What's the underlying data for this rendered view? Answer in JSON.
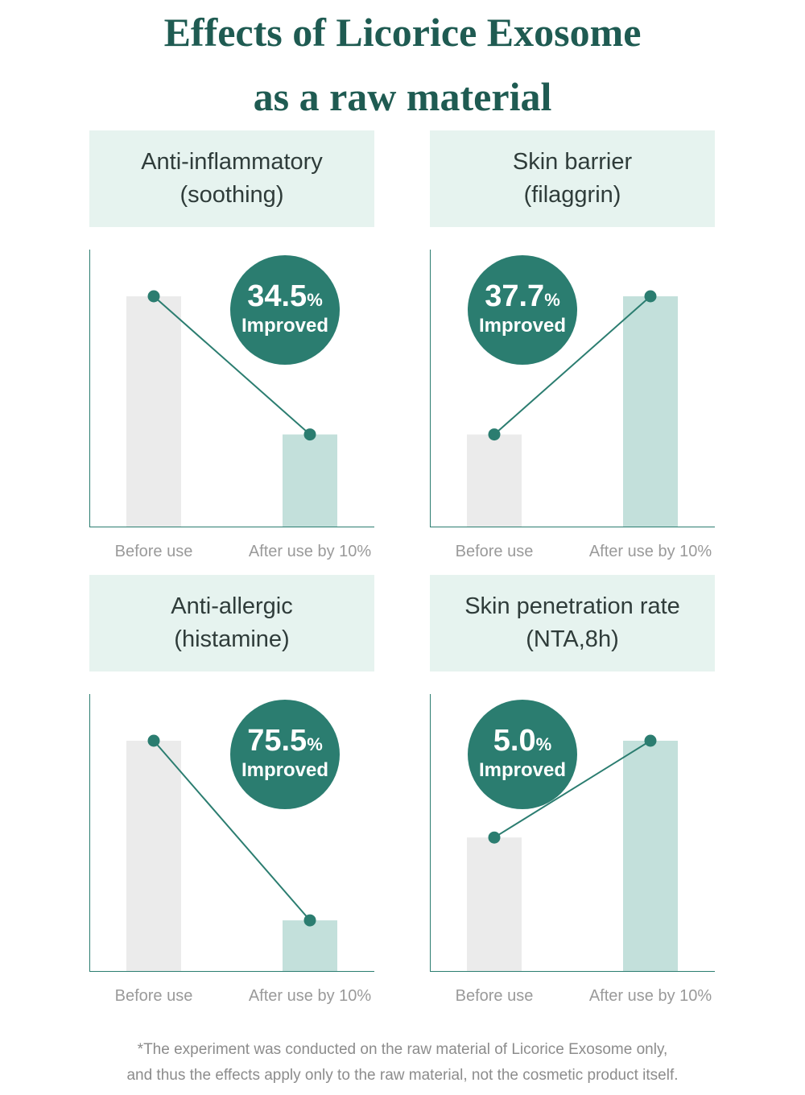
{
  "title": {
    "line1": "Effects of Licorice Exosome",
    "line2": "as a raw material"
  },
  "colors": {
    "title": "#1f5b52",
    "header_bg": "#e6f3ef",
    "bar_before": "#ebebeb",
    "bar_after": "#c3e0db",
    "line": "#2b7d70",
    "badge": "#2b7d70",
    "axis": "#2b7d70"
  },
  "chart_data": [
    {
      "type": "bar",
      "title_line1": "Anti-inflammatory",
      "title_line2": "(soothing)",
      "categories": [
        "Before use",
        "After use by 10%"
      ],
      "values": [
        100,
        40
      ],
      "badge_value": "34.5",
      "badge_unit": "%",
      "badge_label": "Improved",
      "badge_side": "right"
    },
    {
      "type": "bar",
      "title_line1": "Skin barrier",
      "title_line2": "(filaggrin)",
      "categories": [
        "Before use",
        "After use by 10%"
      ],
      "values": [
        40,
        100
      ],
      "badge_value": "37.7",
      "badge_unit": "%",
      "badge_label": "Improved",
      "badge_side": "left"
    },
    {
      "type": "bar",
      "title_line1": "Anti-allergic",
      "title_line2": "(histamine)",
      "categories": [
        "Before use",
        "After use by 10%"
      ],
      "values": [
        100,
        22
      ],
      "badge_value": "75.5",
      "badge_unit": "%",
      "badge_label": "Improved",
      "badge_side": "right"
    },
    {
      "type": "bar",
      "title_line1": "Skin penetration rate",
      "title_line2": "(NTA,8h)",
      "categories": [
        "Before use",
        "After use by 10%"
      ],
      "values": [
        40,
        69
      ],
      "badge_value": "5.0",
      "badge_unit": "%",
      "badge_label": "Improved",
      "badge_side": "left"
    }
  ],
  "footnote": {
    "line1": "*The experiment was conducted on the raw material of Licorice Exosome only,",
    "line2": "and thus the effects apply only to the raw material, not the cosmetic product itself."
  }
}
